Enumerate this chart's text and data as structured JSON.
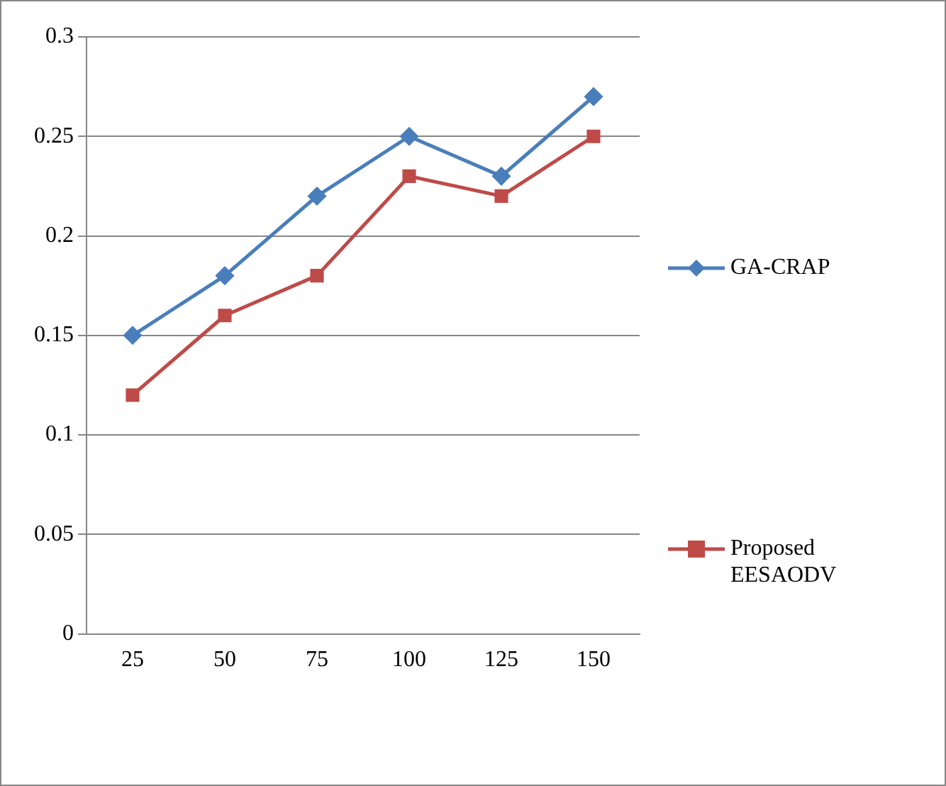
{
  "chart_data": {
    "type": "line",
    "categories": [
      "25",
      "50",
      "75",
      "100",
      "125",
      "150"
    ],
    "series": [
      {
        "name": "GA-CRAP",
        "color": "#4a7ebb",
        "marker": "diamond",
        "values": [
          0.15,
          0.18,
          0.22,
          0.25,
          0.23,
          0.27
        ]
      },
      {
        "name": "Proposed EESAODV",
        "color": "#be4b48",
        "marker": "square",
        "values": [
          0.12,
          0.16,
          0.18,
          0.23,
          0.22,
          0.25
        ]
      }
    ],
    "ylim": [
      0,
      0.3
    ],
    "yticks": [
      0,
      0.05,
      0.1,
      0.15,
      0.2,
      0.25,
      0.3
    ],
    "grid": "y",
    "legend": "right"
  }
}
